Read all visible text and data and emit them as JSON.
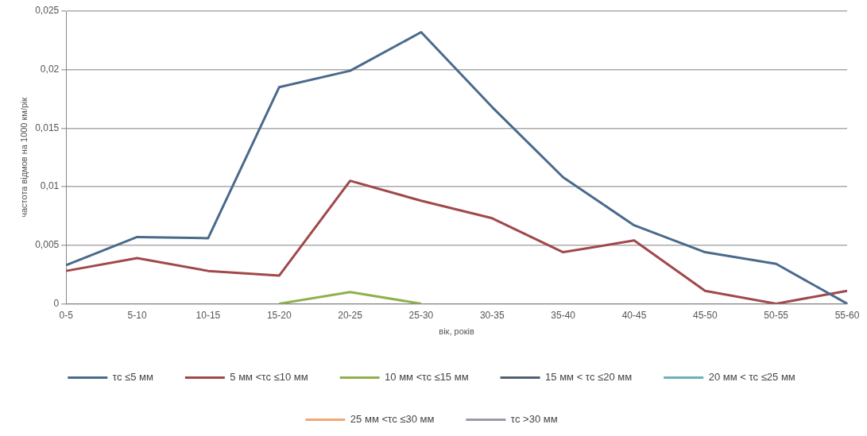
{
  "chart_data": {
    "type": "line",
    "xlabel": "вік, років",
    "ylabel": "частота відмов на 1000 км/рік",
    "categories": [
      "0-5",
      "5-10",
      "10-15",
      "15-20",
      "20-25",
      "25-30",
      "30-35",
      "35-40",
      "40-45",
      "45-50",
      "50-55",
      "55-60"
    ],
    "series": [
      {
        "name": "τc ≤5 мм",
        "color": "#4a6a8c",
        "values": [
          0.0033,
          0.0057,
          0.0056,
          0.0185,
          0.0199,
          0.0232,
          0.0168,
          0.0108,
          0.0067,
          0.0044,
          0.0034,
          0
        ]
      },
      {
        "name": "5 мм <τc ≤10 мм",
        "color": "#a0484a",
        "values": [
          0.0028,
          0.0039,
          0.0028,
          0.0024,
          0.0105,
          0.0088,
          0.0073,
          0.0044,
          0.0054,
          0.0011,
          0,
          0.0011
        ]
      },
      {
        "name": "10 мм <τc ≤15 мм",
        "color": "#8fb04f",
        "values": [
          null,
          null,
          null,
          0,
          0.001,
          0,
          null,
          null,
          null,
          null,
          null,
          null
        ]
      },
      {
        "name": "15 мм < τc ≤20 мм",
        "color": "#4f5f73",
        "values": [
          null,
          null,
          null,
          null,
          null,
          null,
          null,
          null,
          null,
          null,
          null,
          null
        ]
      },
      {
        "name": "20 мм < τc ≤25 мм",
        "color": "#6fb0b8",
        "values": [
          null,
          null,
          null,
          null,
          null,
          null,
          null,
          null,
          null,
          null,
          null,
          null
        ]
      },
      {
        "name": "25 мм <τc ≤30 мм",
        "color": "#f0a870",
        "values": [
          null,
          null,
          null,
          null,
          null,
          null,
          null,
          null,
          null,
          null,
          null,
          null
        ]
      },
      {
        "name": "τc >30 мм",
        "color": "#9a9aaa",
        "values": [
          null,
          null,
          null,
          null,
          null,
          null,
          null,
          null,
          null,
          null,
          null,
          null
        ]
      }
    ],
    "ylim": [
      0,
      0.025
    ],
    "yticks": [
      {
        "value": 0,
        "label": "0"
      },
      {
        "value": 0.005,
        "label": "0,005"
      },
      {
        "value": 0.01,
        "label": "0,01"
      },
      {
        "value": 0.015,
        "label": "0,015"
      },
      {
        "value": 0.02,
        "label": "0,02"
      },
      {
        "value": 0.025,
        "label": "0,025"
      }
    ],
    "grid": "y",
    "legend": "bottom",
    "marker": "none",
    "line_style": "solid"
  }
}
